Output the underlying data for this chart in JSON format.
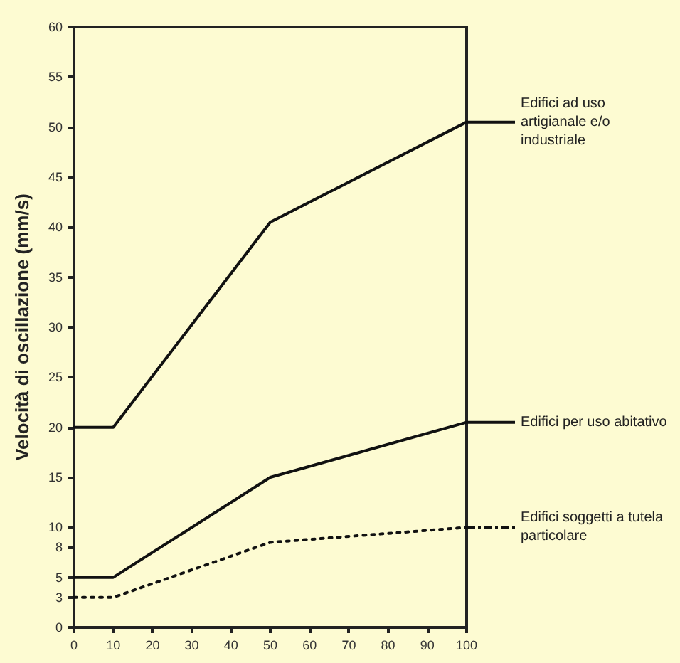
{
  "chart_data": {
    "type": "line",
    "ylabel": "Velocità di oscillazione (mm/s)",
    "x": [
      0,
      10,
      50,
      100
    ],
    "series": [
      {
        "name": "Edifici ad uso artigianale e/o industriale",
        "color": "#111111",
        "values": [
          20,
          20,
          40.5,
          50.5
        ],
        "line_style": "solid"
      },
      {
        "name": "Edifici per uso abitativo",
        "color": "#111111",
        "values": [
          5,
          5,
          15,
          20.5
        ],
        "line_style": "solid"
      },
      {
        "name": "Edifici soggetti a tutela particolare",
        "color": "#111111",
        "values": [
          3,
          3,
          8.5,
          10
        ],
        "line_style": "dotted"
      }
    ],
    "xlim": [
      0,
      100
    ],
    "xticks": [
      0,
      10,
      20,
      30,
      40,
      50,
      60,
      70,
      80,
      90,
      100
    ],
    "ylim": [
      0,
      60
    ],
    "yticks": [
      0,
      3,
      5,
      8,
      10,
      15,
      20,
      25,
      30,
      35,
      40,
      45,
      50,
      55,
      60
    ],
    "grid": false,
    "legend": "right",
    "marker": "none"
  }
}
